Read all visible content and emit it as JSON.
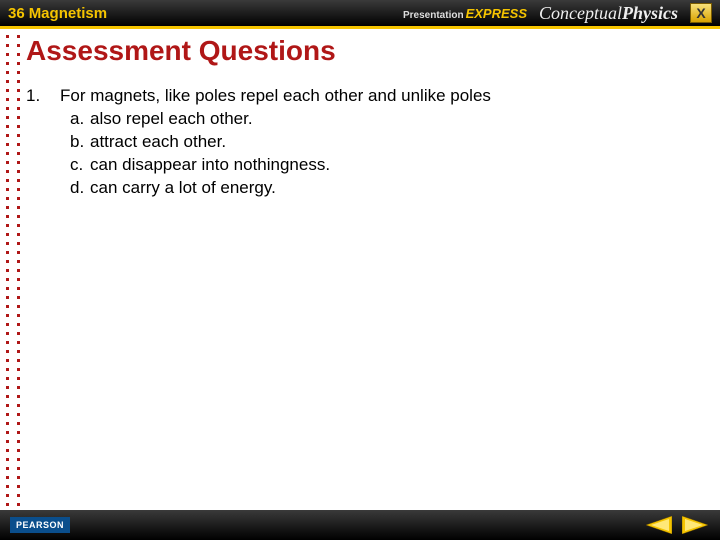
{
  "header": {
    "chapter_number": "36",
    "chapter_title": "Magnetism",
    "brand_small": "Presentation",
    "brand_accent": "EXPRESS",
    "book_part1": "Conceptual",
    "book_part2": "Physics",
    "close_label": "X"
  },
  "colors": {
    "accent_yellow": "#f5c400",
    "heading_red": "#b01717",
    "bar_dark": "#000000",
    "pearson_blue": "#0a4e8c"
  },
  "section_title": "Assessment Questions",
  "question": {
    "number": "1.",
    "stem": "For magnets, like poles repel each other and unlike poles",
    "options": [
      {
        "letter": "a.",
        "text": "also repel each other."
      },
      {
        "letter": "b.",
        "text": "attract each other."
      },
      {
        "letter": "c.",
        "text": "can disappear into nothingness."
      },
      {
        "letter": "d.",
        "text": "can carry a lot of energy."
      }
    ]
  },
  "footer": {
    "publisher": "PEARSON"
  }
}
